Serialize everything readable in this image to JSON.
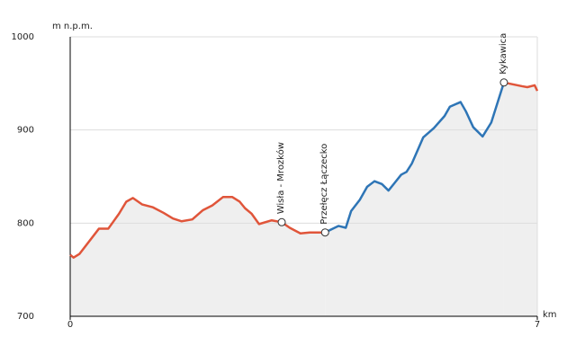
{
  "chart_data": {
    "type": "line",
    "y_label": "m n.p.m.",
    "x_label": "km",
    "xlim": [
      0,
      7
    ],
    "xticks": [
      0,
      7
    ],
    "ylim": [
      700,
      1000
    ],
    "yticks": [
      700,
      800,
      900,
      1000
    ],
    "grid": true,
    "area_color": "#efefef",
    "series": [
      {
        "color": "#e0553a",
        "x": [
          0,
          0.05,
          0.14,
          0.43,
          0.57,
          0.73,
          0.84,
          0.94,
          1.08,
          1.24,
          1.4,
          1.54,
          1.67,
          1.83,
          1.99,
          2.13,
          2.29,
          2.43,
          2.54,
          2.62,
          2.72,
          2.83,
          3.02,
          3.17,
          3.29,
          3.45,
          3.59,
          3.82
        ],
        "values": [
          766,
          763,
          767,
          794,
          794,
          810,
          823,
          827,
          820,
          817,
          811,
          805,
          802,
          804,
          814,
          819,
          828,
          828,
          823,
          816,
          810,
          799,
          803,
          801,
          795,
          789,
          790,
          790
        ]
      },
      {
        "color": "#2e75b6",
        "x": [
          3.82,
          4.02,
          4.13,
          4.21,
          4.34,
          4.45,
          4.56,
          4.67,
          4.77,
          4.86,
          4.96,
          5.04,
          5.12,
          5.29,
          5.45,
          5.61,
          5.69,
          5.85,
          5.93,
          6.04,
          6.18,
          6.31,
          6.5
        ],
        "values": [
          790,
          797,
          795,
          813,
          825,
          839,
          845,
          842,
          835,
          843,
          852,
          855,
          864,
          892,
          902,
          915,
          925,
          930,
          920,
          903,
          893,
          908,
          951
        ]
      },
      {
        "color": "#e0553a",
        "x": [
          6.5,
          6.77,
          6.85,
          6.96,
          7
        ],
        "values": [
          951,
          947,
          946,
          948,
          942
        ]
      }
    ],
    "annotations": [
      {
        "text": "Wisła - Mrozków",
        "x": 3.17,
        "y": 801
      },
      {
        "text": "Przełęcz Łączecko",
        "x": 3.82,
        "y": 790
      },
      {
        "text": "Kykawica",
        "x": 6.5,
        "y": 951
      }
    ]
  }
}
